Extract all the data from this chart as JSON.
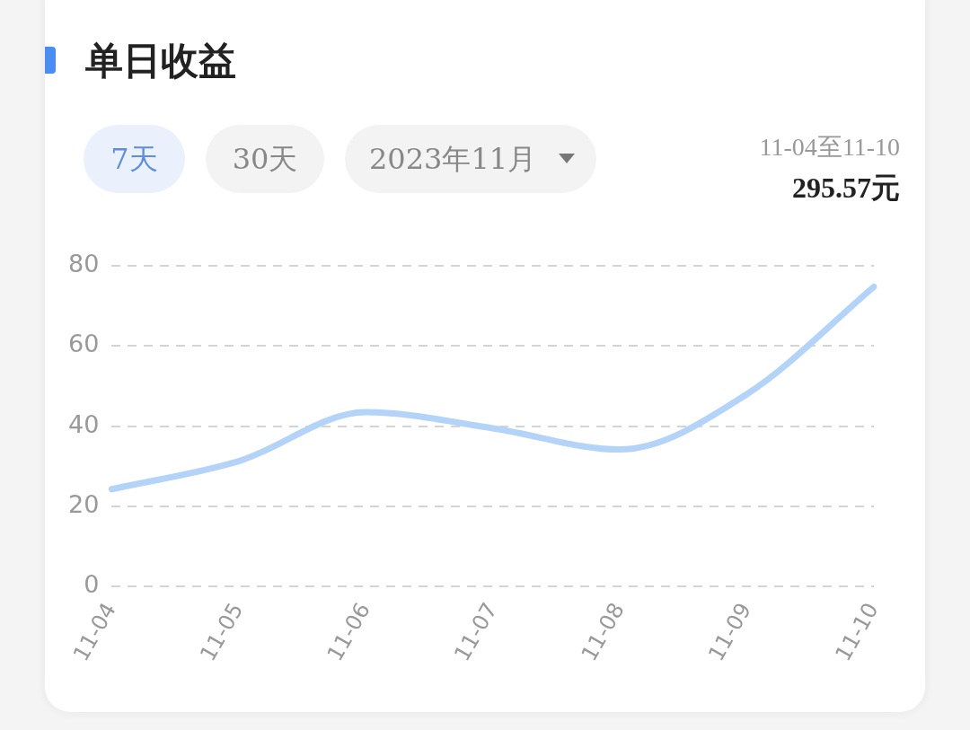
{
  "chart_data": {
    "type": "line",
    "title": "单日收益",
    "annotations": [
      "7天",
      "30天",
      "2023年11月",
      "11-04至11-10",
      "295.57元"
    ],
    "categories": [
      "11-04",
      "11-05",
      "11-06",
      "11-07",
      "11-08",
      "11-09",
      "11-10"
    ],
    "series": [
      {
        "color": "#b3d3f8",
        "values": [
          24.3,
          31.3,
          43.5,
          39.5,
          34.2,
          48.0,
          74.8
        ]
      }
    ],
    "ylim": [
      0,
      80
    ],
    "yticks": [
      0,
      20,
      40,
      60,
      80
    ],
    "grid": "y",
    "marker": "none",
    "line_style": "solid",
    "legend": false
  }
}
